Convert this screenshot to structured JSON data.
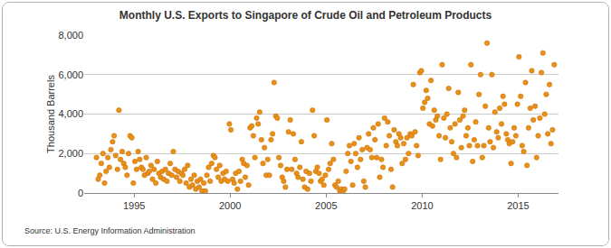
{
  "chart_data": {
    "type": "scatter",
    "title": "Monthly U.S. Exports to Singapore of Crude Oil and Petroleum Products",
    "y_label": "Thousand Barrels",
    "annotations": [
      {
        "text": "Source: U.S. Energy Information Administration"
      }
    ],
    "color": "#e8901a",
    "marker": "circle",
    "grid": "y",
    "xlim": [
      1992.4,
      2017.1
    ],
    "xticks": [
      1995,
      2000,
      2005,
      2010,
      2015
    ],
    "ylim": [
      0,
      8000
    ],
    "yticks": [
      0,
      {
        "value": 2000,
        "label": "2,000"
      },
      {
        "value": 4000,
        "label": "4,000"
      },
      {
        "value": 6000,
        "label": "6,000"
      },
      {
        "value": 8000,
        "label": "8,000"
      }
    ],
    "x": [
      1993.04,
      1993.13,
      1993.21,
      1993.29,
      1993.38,
      1993.46,
      1993.54,
      1993.63,
      1993.71,
      1993.79,
      1993.88,
      1993.96,
      1994.04,
      1994.13,
      1994.21,
      1994.29,
      1994.38,
      1994.46,
      1994.54,
      1994.63,
      1994.71,
      1994.79,
      1994.88,
      1994.96,
      1995.04,
      1995.13,
      1995.21,
      1995.29,
      1995.38,
      1995.46,
      1995.54,
      1995.63,
      1995.71,
      1995.79,
      1995.88,
      1995.96,
      1996.04,
      1996.13,
      1996.21,
      1996.29,
      1996.38,
      1996.46,
      1996.54,
      1996.63,
      1996.71,
      1996.79,
      1996.88,
      1996.96,
      1997.04,
      1997.13,
      1997.21,
      1997.29,
      1997.38,
      1997.46,
      1997.54,
      1997.63,
      1997.71,
      1997.79,
      1997.88,
      1997.96,
      1998.04,
      1998.13,
      1998.21,
      1998.29,
      1998.38,
      1998.46,
      1998.54,
      1998.63,
      1998.71,
      1998.79,
      1998.88,
      1998.96,
      1999.04,
      1999.13,
      1999.21,
      1999.29,
      1999.38,
      1999.46,
      1999.54,
      1999.63,
      1999.71,
      1999.79,
      1999.88,
      1999.96,
      2000.04,
      2000.13,
      2000.21,
      2000.29,
      2000.38,
      2000.46,
      2000.54,
      2000.63,
      2000.71,
      2000.79,
      2000.88,
      2000.96,
      2001.04,
      2001.13,
      2001.21,
      2001.29,
      2001.38,
      2001.46,
      2001.54,
      2001.63,
      2001.71,
      2001.79,
      2001.88,
      2001.96,
      2002.04,
      2002.13,
      2002.21,
      2002.29,
      2002.38,
      2002.46,
      2002.54,
      2002.63,
      2002.71,
      2002.79,
      2002.88,
      2002.96,
      2003.04,
      2003.13,
      2003.21,
      2003.29,
      2003.38,
      2003.46,
      2003.54,
      2003.63,
      2003.71,
      2003.79,
      2003.88,
      2003.96,
      2004.04,
      2004.13,
      2004.21,
      2004.29,
      2004.38,
      2004.46,
      2004.54,
      2004.63,
      2004.71,
      2004.79,
      2004.88,
      2004.96,
      2005.04,
      2005.13,
      2005.21,
      2005.29,
      2005.38,
      2005.46,
      2005.54,
      2005.63,
      2005.71,
      2005.79,
      2005.88,
      2005.96,
      2006.04,
      2006.13,
      2006.21,
      2006.29,
      2006.38,
      2006.46,
      2006.54,
      2006.63,
      2006.71,
      2006.79,
      2006.88,
      2006.96,
      2007.04,
      2007.13,
      2007.21,
      2007.29,
      2007.38,
      2007.46,
      2007.54,
      2007.63,
      2007.71,
      2007.79,
      2007.88,
      2007.96,
      2008.04,
      2008.13,
      2008.21,
      2008.29,
      2008.38,
      2008.46,
      2008.54,
      2008.63,
      2008.71,
      2008.79,
      2008.88,
      2008.96,
      2009.04,
      2009.13,
      2009.21,
      2009.29,
      2009.38,
      2009.46,
      2009.54,
      2009.63,
      2009.71,
      2009.79,
      2009.88,
      2009.96,
      2010.04,
      2010.13,
      2010.21,
      2010.29,
      2010.38,
      2010.46,
      2010.54,
      2010.63,
      2010.71,
      2010.79,
      2010.88,
      2010.96,
      2011.04,
      2011.13,
      2011.21,
      2011.29,
      2011.38,
      2011.46,
      2011.54,
      2011.63,
      2011.71,
      2011.79,
      2011.88,
      2011.96,
      2012.04,
      2012.13,
      2012.21,
      2012.29,
      2012.38,
      2012.46,
      2012.54,
      2012.63,
      2012.71,
      2012.79,
      2012.88,
      2012.96,
      2013.04,
      2013.13,
      2013.21,
      2013.29,
      2013.38,
      2013.46,
      2013.54,
      2013.63,
      2013.71,
      2013.79,
      2013.88,
      2013.96,
      2014.04,
      2014.13,
      2014.21,
      2014.29,
      2014.38,
      2014.46,
      2014.54,
      2014.63,
      2014.71,
      2014.79,
      2014.88,
      2014.96,
      2015.04,
      2015.13,
      2015.21,
      2015.29,
      2015.38,
      2015.46,
      2015.54,
      2015.63,
      2015.71,
      2015.79,
      2015.88,
      2015.96,
      2016.04,
      2016.13,
      2016.21,
      2016.29,
      2016.38,
      2016.46,
      2016.54,
      2016.63,
      2016.71,
      2016.79,
      2016.88
    ],
    "values": [
      1800,
      700,
      900,
      1500,
      2000,
      500,
      1100,
      1800,
      1300,
      2200,
      2600,
      2900,
      1900,
      1200,
      4200,
      1700,
      2100,
      1500,
      1300,
      900,
      2000,
      2900,
      2800,
      500,
      1600,
      1200,
      2100,
      1700,
      1300,
      1200,
      900,
      1800,
      1000,
      1100,
      1400,
      700,
      1200,
      500,
      1600,
      1000,
      800,
      1100,
      700,
      1200,
      600,
      1000,
      1500,
      900,
      2100,
      1200,
      800,
      1100,
      600,
      1000,
      900,
      1200,
      500,
      1400,
      300,
      700,
      400,
      900,
      200,
      600,
      300,
      700,
      100,
      500,
      100,
      900,
      1300,
      600,
      1500,
      1900,
      1800,
      1200,
      800,
      1400,
      600,
      1000,
      700,
      1100,
      600,
      3500,
      3200,
      700,
      500,
      1000,
      200,
      1100,
      600,
      1700,
      1500,
      800,
      1400,
      400,
      3300,
      3400,
      2900,
      1800,
      3800,
      3500,
      4100,
      2700,
      1500,
      2300,
      900,
      1700,
      900,
      2700,
      3000,
      5600,
      3900,
      3800,
      1800,
      1400,
      800,
      600,
      300,
      1200,
      3100,
      3700,
      1200,
      3000,
      1700,
      1000,
      800,
      1300,
      2600,
      700,
      300,
      1100,
      200,
      1000,
      600,
      4200,
      2900,
      1100,
      1300,
      1000,
      600,
      700,
      400,
      900,
      3700,
      1200,
      1500,
      2500,
      1700,
      400,
      300,
      600,
      100,
      200,
      100,
      200,
      1100,
      2000,
      2400,
      1600,
      400,
      2500,
      2000,
      1300,
      2800,
      1700,
      2200,
      600,
      300,
      2300,
      3000,
      2200,
      1800,
      3300,
      2700,
      1800,
      3500,
      800,
      1700,
      1300,
      3800,
      2400,
      3600,
      2900,
      1200,
      300,
      3200,
      2600,
      2400,
      3000,
      2800,
      1500,
      2500,
      1700,
      2800,
      2000,
      3000,
      2900,
      5500,
      3100,
      2400,
      1900,
      6100,
      6200,
      4300,
      4600,
      5200,
      4800,
      3500,
      5700,
      3400,
      4200,
      3700,
      3900,
      2900,
      1700,
      6500,
      3800,
      2800,
      4000,
      5300,
      3300,
      2600,
      2000,
      3500,
      1800,
      5100,
      3700,
      2300,
      3900,
      4200,
      2900,
      3300,
      2400,
      6500,
      1600,
      2700,
      3600,
      2400,
      5000,
      6000,
      1800,
      2400,
      4400,
      7600,
      3300,
      2600,
      6000,
      2300,
      4100,
      3100,
      2800,
      4300,
      3500,
      4900,
      4500,
      3000,
      2700,
      2500,
      1500,
      2600,
      3300,
      2900,
      4500,
      6900,
      4900,
      2400,
      2100,
      5600,
      1400,
      3300,
      4300,
      6200,
      3700,
      4400,
      1800,
      2900,
      3800,
      6100,
      7100,
      4000,
      5000,
      3000,
      5500,
      2500,
      3200,
      6500
    ]
  }
}
